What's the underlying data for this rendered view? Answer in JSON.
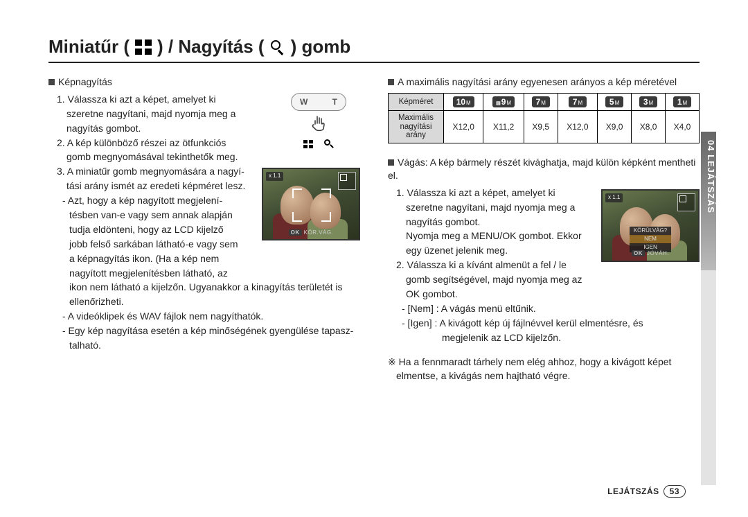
{
  "title": {
    "pre": "Miniatűr (",
    "mid": ") / Nagyítás (",
    "post": ") gomb"
  },
  "left": {
    "heading": "Képnagyítás",
    "s1a": "1. Válassza ki azt a képet, amelyet ki",
    "s1b": "szeretne nagyítani, majd nyomja meg a",
    "s1c": "nagyítás gombot.",
    "s2a": "2. A kép különböző részei az ötfunkciós",
    "s2b": "gomb megnyomásával tekinthetők meg.",
    "s3a": "3. A miniatűr gomb megnyomására a nagyí-",
    "s3b": "tási arány ismét az eredeti képméret lesz.",
    "d1a": "- Azt, hogy a kép nagyított megjelení-",
    "d1b": "tésben van-e vagy sem annak alapján",
    "d1c": "tudja eldönteni, hogy az LCD kijelző",
    "d1d": "jobb felső sarkában látható-e vagy sem",
    "d1e": "a képnagyítás ikon. (Ha a kép nem",
    "d1f": "nagyított megjelenítésben látható, az",
    "d1g": "ikon nem látható a kijelzőn. Ugyanakkor a kinagyítás területét is",
    "d1h": "ellenőrizheti.",
    "d2": "- A videóklipek és WAV fájlok nem nagyíthatók.",
    "d3a": "- Egy kép nagyítása esetén a kép minőségének gyengülése tapasz-",
    "d3b": "talható.",
    "wt_w": "W",
    "wt_t": "T",
    "photo1_zoom": "x 1.1",
    "photo1_ok": "OK",
    "photo1_action": "KÖR.VÁG."
  },
  "right": {
    "heading": "A maximális nagyítási arány egyenesen arányos a kép méretével",
    "th_size": "Képméret",
    "th_ratio1": "Maximális",
    "th_ratio2": "nagyítási arány",
    "sizes": [
      "10",
      "9",
      "7",
      "7",
      "5",
      "3",
      "1"
    ],
    "wide_idx": 1,
    "ratios": [
      "X12,0",
      "X11,2",
      "X9,5",
      "X12,0",
      "X9,0",
      "X8,0",
      "X4,0"
    ],
    "cut_heading": "Vágás: A kép bármely részét kivághatja, majd külön képként mentheti el.",
    "c1a": "1. Válassza ki azt a képet, amelyet ki",
    "c1b": "szeretne nagyítani, majd nyomja meg a",
    "c1c": "nagyítás gombot.",
    "c1d": "Nyomja meg a MENU/OK gombot. Ekkor",
    "c1e": "egy üzenet jelenik meg.",
    "c2a": "2. Válassza ki a kívánt almenüt a  fel / le",
    "c2b": "gomb segítségével, majd nyomja meg az",
    "c2c": "OK gombot.",
    "opt_no": "- [Nem]   : A vágás menü eltűnik.",
    "opt_yes_a": "- [Igen]   : A kivágott kép új fájlnévvel kerül elmentésre, és",
    "opt_yes_b": "megjelenik az LCD kijelzőn.",
    "note_a": "※ Ha a fennmaradt tárhely nem elég ahhoz, hogy a kivágott képet",
    "note_b": "elmentse, a kivágás nem hajtható végre.",
    "photo2_zoom": "x 1.1",
    "photo2_q": "KÖRÜLVÁG?",
    "photo2_n": "NEM",
    "photo2_y": "IGEN",
    "photo2_ok": "OK",
    "photo2_action": "JÓVÁH."
  },
  "sidebar": "04 LEJÁTSZÁS",
  "footer_label": "LEJÁTSZÁS",
  "page_number": "53",
  "colors": {
    "sidebar_top": "#666",
    "sidebar_bot": "#bbb",
    "header_cell": "#d9d9d9",
    "badge": "#3a3a3a"
  }
}
